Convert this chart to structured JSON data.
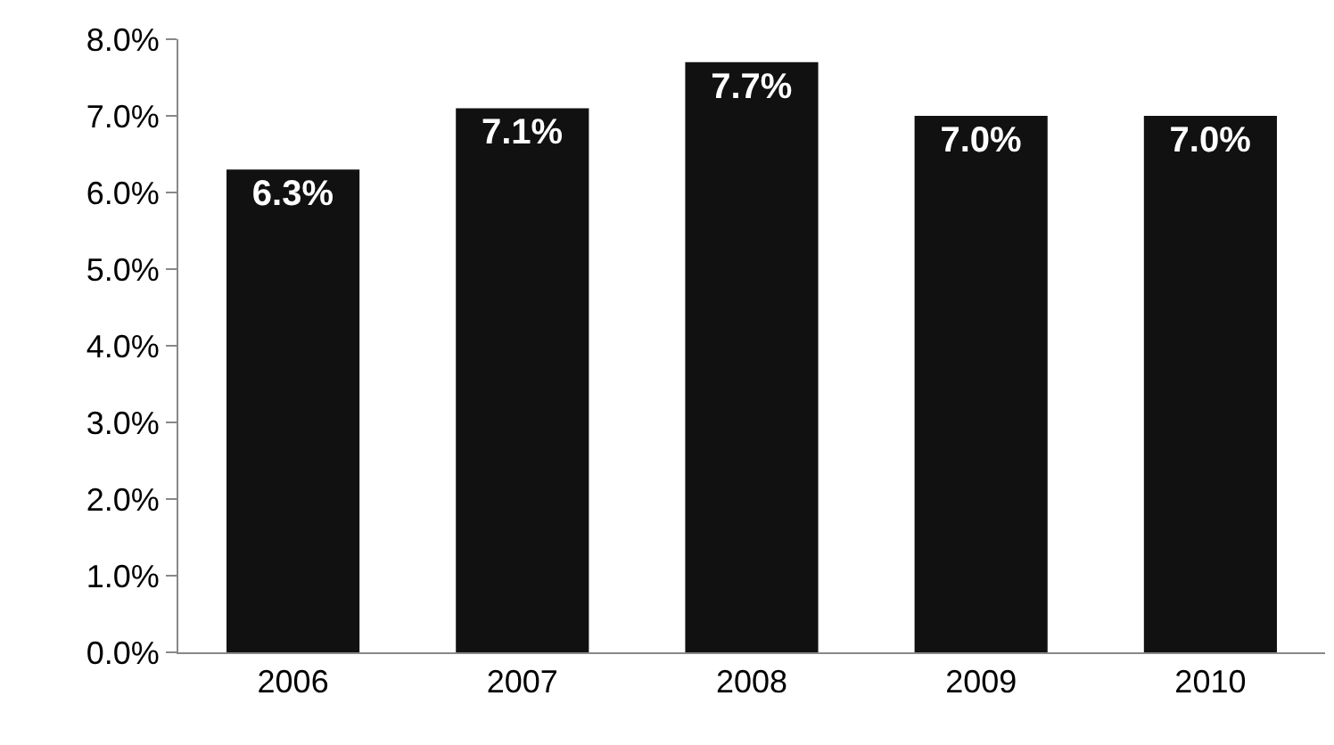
{
  "chart_data": {
    "type": "bar",
    "categories": [
      "2006",
      "2007",
      "2008",
      "2009",
      "2010"
    ],
    "values": [
      6.3,
      7.1,
      7.7,
      7.0,
      7.0
    ],
    "value_labels": [
      "6.3%",
      "7.1%",
      "7.7%",
      "7.0%",
      "7.0%"
    ],
    "color": "#111111",
    "ylim": [
      0,
      8
    ],
    "yticks": [
      {
        "value": 0,
        "label": "0.0%"
      },
      {
        "value": 1,
        "label": "1.0%"
      },
      {
        "value": 2,
        "label": "2.0%"
      },
      {
        "value": 3,
        "label": "3.0%"
      },
      {
        "value": 4,
        "label": "4.0%"
      },
      {
        "value": 5,
        "label": "5.0%"
      },
      {
        "value": 6,
        "label": "6.0%"
      },
      {
        "value": 7,
        "label": "7.0%"
      },
      {
        "value": 8,
        "label": "8.0%"
      }
    ],
    "legend": false
  }
}
